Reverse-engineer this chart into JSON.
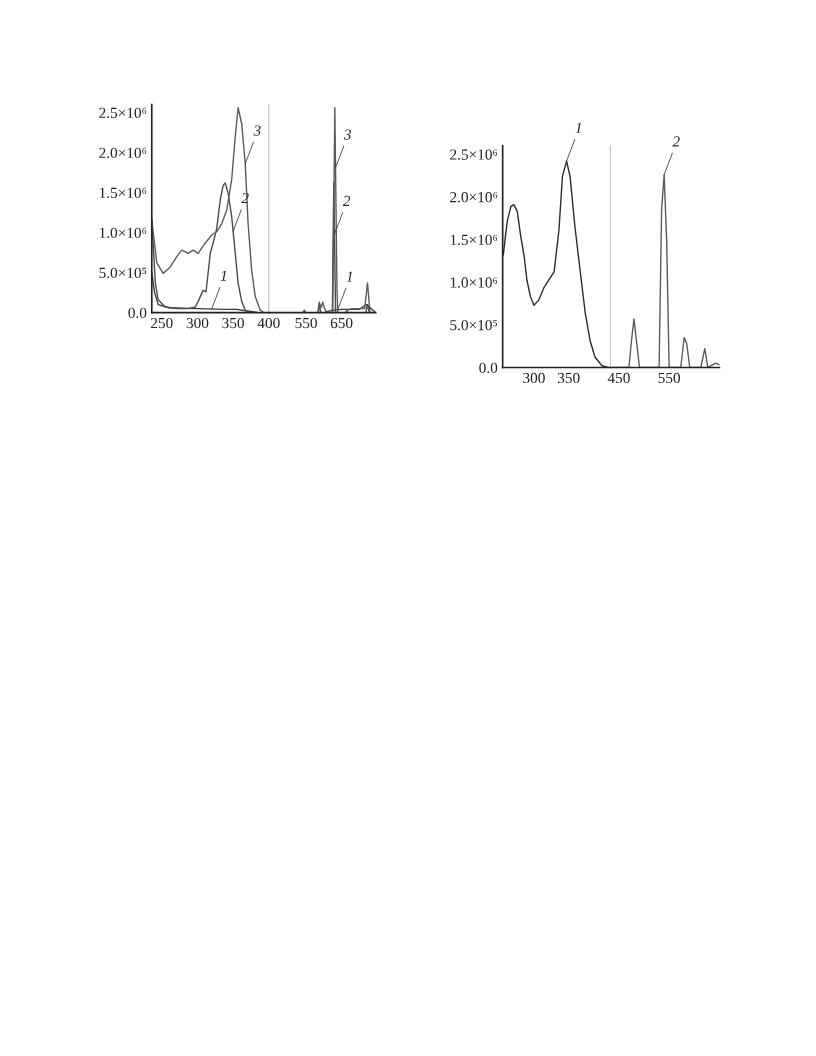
{
  "chart_data": [
    {
      "type": "line",
      "xlim": [
        236,
        400
      ],
      "xticks": [
        250,
        300,
        350,
        400
      ],
      "ylim": [
        0,
        2600000
      ],
      "yticks": [
        {
          "value": 0,
          "label": "0.0"
        },
        {
          "value": 500000,
          "label": "5.0×10⁵"
        },
        {
          "value": 1000000,
          "label": "1.0×10⁶"
        },
        {
          "value": 1500000,
          "label": "1.5×10⁶"
        },
        {
          "value": 2000000,
          "label": "2.0×10⁶"
        },
        {
          "value": 2500000,
          "label": "2.5×10⁶"
        }
      ],
      "grid": false,
      "legend": false,
      "series": [
        {
          "color": "#3a3a3a",
          "x": [
            236,
            240,
            245,
            260,
            300,
            340,
            355,
            370,
            385,
            400
          ],
          "values": [
            500000,
            250000,
            100000,
            60000,
            50000,
            40000,
            40000,
            20000,
            0,
            0
          ]
        },
        {
          "color": "#4a4a4a",
          "x": [
            236,
            241,
            245,
            255,
            273,
            287,
            297,
            301,
            308,
            312,
            318,
            322,
            327,
            332,
            336,
            339,
            343,
            348,
            353,
            357,
            362,
            367,
            371,
            393,
            400
          ],
          "values": [
            1160000,
            370000,
            160000,
            70000,
            50000,
            50000,
            70000,
            140000,
            280000,
            260000,
            740000,
            870000,
            1050000,
            1410000,
            1590000,
            1620000,
            1490000,
            1200000,
            740000,
            370000,
            140000,
            30000,
            0,
            0,
            0
          ]
        },
        {
          "color": "#5a5a5a",
          "x": [
            236,
            243,
            252,
            262,
            271,
            278,
            287,
            294,
            301,
            311,
            320,
            327,
            334,
            341,
            348,
            353,
            357,
            362,
            367,
            371,
            376,
            381,
            388,
            393,
            400
          ],
          "values": [
            1160000,
            620000,
            490000,
            570000,
            700000,
            780000,
            740000,
            780000,
            740000,
            870000,
            970000,
            1010000,
            1110000,
            1280000,
            1660000,
            2200000,
            2560000,
            2360000,
            1860000,
            1110000,
            530000,
            200000,
            30000,
            0,
            0
          ]
        }
      ],
      "annotations": [
        {
          "text": "3",
          "x": 367,
          "y": 1860000
        },
        {
          "text": "2",
          "x": 350,
          "y": 1016000
        },
        {
          "text": "1",
          "x": 320,
          "y": 45000
        }
      ]
    },
    {
      "type": "line",
      "xlim": [
        445,
        746
      ],
      "xticks": [
        550,
        650
      ],
      "ylim": [
        0,
        2600000
      ],
      "tick_labels": "x",
      "yticks": [
        {
          "value": 0,
          "label": null
        },
        {
          "value": 500000,
          "label": null
        },
        {
          "value": 1000000,
          "label": null
        },
        {
          "value": 1500000,
          "label": null
        },
        {
          "value": 2000000,
          "label": null
        },
        {
          "value": 2500000,
          "label": null
        }
      ],
      "grid": false,
      "legend": false,
      "series": [
        {
          "color": "#3a3a3a",
          "x": [
            445,
            600,
            625,
            650,
            700,
            720,
            746
          ],
          "values": [
            0,
            0,
            30000,
            40000,
            40000,
            100000,
            0
          ]
        },
        {
          "color": "#4a4a4a",
          "x": [
            445,
            585,
            587,
            592,
            620,
            624,
            628,
            633,
            639,
            700,
            718,
            723,
            728,
            746
          ],
          "values": [
            0,
            0,
            100000,
            0,
            0,
            0,
            1630000,
            0,
            0,
            0,
            0,
            100000,
            0,
            0
          ]
        },
        {
          "color": "#5a5a5a",
          "x": [
            445,
            540,
            545,
            550,
            583,
            587,
            592,
            597,
            602,
            610,
            625,
            631,
            637,
            639,
            660,
            671,
            680,
            715,
            723,
            730,
            746
          ],
          "values": [
            0,
            0,
            30000,
            0,
            0,
            130000,
            60000,
            130000,
            50000,
            0,
            0,
            2560000,
            300000,
            0,
            0,
            40000,
            50000,
            50000,
            370000,
            0,
            0
          ]
        }
      ],
      "annotations": [
        {
          "text": "3",
          "x": 633,
          "y": 1810000
        },
        {
          "text": "2",
          "x": 630,
          "y": 980000
        },
        {
          "text": "1",
          "x": 639,
          "y": 34000
        }
      ]
    },
    {
      "type": "line",
      "xlim": [
        255,
        410
      ],
      "xticks": [
        300,
        350
      ],
      "ylim": [
        0,
        2600000
      ],
      "yticks": [
        {
          "value": 0,
          "label": "0.0"
        },
        {
          "value": 500000,
          "label": "5.0×10⁵"
        },
        {
          "value": 1000000,
          "label": "1.0×10⁶"
        },
        {
          "value": 1500000,
          "label": "1.5×10⁶"
        },
        {
          "value": 2000000,
          "label": "2.0×10⁶"
        },
        {
          "value": 2500000,
          "label": "2.5×10⁶"
        }
      ],
      "grid": false,
      "legend": false,
      "series": [
        {
          "color": "#2a2a2a",
          "x": [
            256,
            259,
            262,
            267,
            271,
            276,
            281,
            286,
            290,
            295,
            300,
            307,
            314,
            321,
            329,
            336,
            341,
            347,
            352,
            359,
            367,
            374,
            381,
            388,
            398,
            407
          ],
          "values": [
            1320000,
            1540000,
            1730000,
            1890000,
            1910000,
            1830000,
            1540000,
            1300000,
            1020000,
            830000,
            730000,
            790000,
            930000,
            1020000,
            1120000,
            1610000,
            2240000,
            2420000,
            2240000,
            1650000,
            1100000,
            630000,
            310000,
            120000,
            20000,
            0
          ]
        }
      ],
      "annotations": [
        {
          "text": "1",
          "x": 347,
          "y": 2420000
        }
      ]
    },
    {
      "type": "line",
      "xlim": [
        433,
        650
      ],
      "xticks": [
        450,
        550
      ],
      "ylim": [
        0,
        2600000
      ],
      "tick_labels": "x",
      "yticks": [
        {
          "value": 0,
          "label": null
        },
        {
          "value": 500000,
          "label": null
        },
        {
          "value": 1000000,
          "label": null
        },
        {
          "value": 1500000,
          "label": null
        },
        {
          "value": 2000000,
          "label": null
        },
        {
          "value": 2500000,
          "label": null
        }
      ],
      "grid": false,
      "legend": false,
      "series": [
        {
          "color": "#5a5a5a",
          "x": [
            437,
            470,
            475,
            480,
            485,
            491,
            530,
            535,
            540,
            545,
            550,
            573,
            580,
            585,
            591,
            613,
            621,
            627,
            643,
            650
          ],
          "values": [
            0,
            0,
            310000,
            570000,
            310000,
            0,
            0,
            1850000,
            2260000,
            1500000,
            0,
            0,
            350000,
            280000,
            0,
            0,
            220000,
            0,
            50000,
            30000
          ]
        }
      ],
      "annotations": [
        {
          "text": "2",
          "x": 540,
          "y": 2260000
        }
      ]
    }
  ]
}
